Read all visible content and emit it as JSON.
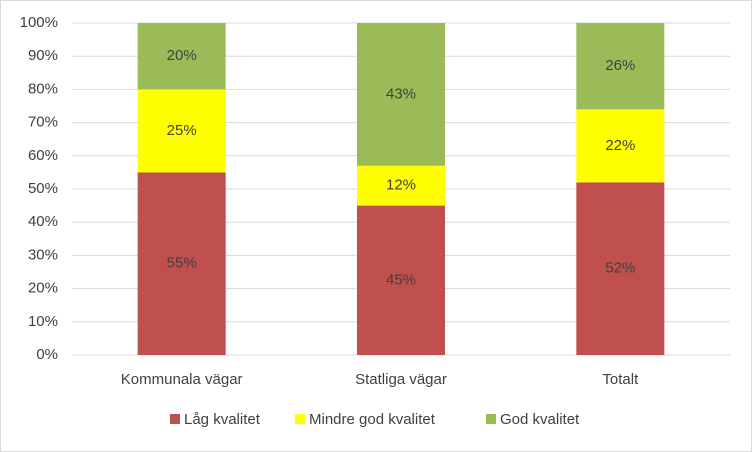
{
  "chart_data": {
    "type": "stacked_bar",
    "categories": [
      "Kommunala vägar",
      "Statliga vägar",
      "Totalt"
    ],
    "series": [
      {
        "name": "Låg kvalitet",
        "color": "#c0504d",
        "values": [
          55,
          45,
          52
        ],
        "value_labels": [
          "55%",
          "45%",
          "52%"
        ]
      },
      {
        "name": "Mindre god kvalitet",
        "color": "#ffff00",
        "values": [
          25,
          12,
          22
        ],
        "value_labels": [
          "25%",
          "12%",
          "22%"
        ]
      },
      {
        "name": "God kvalitet",
        "color": "#9bbb59",
        "values": [
          20,
          43,
          26
        ],
        "value_labels": [
          "20%",
          "43%",
          "26%"
        ]
      }
    ],
    "ylim": [
      0,
      100
    ],
    "yticks": [
      {
        "value": 0,
        "label": "0%"
      },
      {
        "value": 10,
        "label": "10%"
      },
      {
        "value": 20,
        "label": "20%"
      },
      {
        "value": 30,
        "label": "30%"
      },
      {
        "value": 40,
        "label": "40%"
      },
      {
        "value": 50,
        "label": "50%"
      },
      {
        "value": 60,
        "label": "60%"
      },
      {
        "value": 70,
        "label": "70%"
      },
      {
        "value": 80,
        "label": "80%"
      },
      {
        "value": 90,
        "label": "90%"
      },
      {
        "value": 100,
        "label": "100%"
      }
    ],
    "grid": true,
    "legend": "bottom"
  }
}
